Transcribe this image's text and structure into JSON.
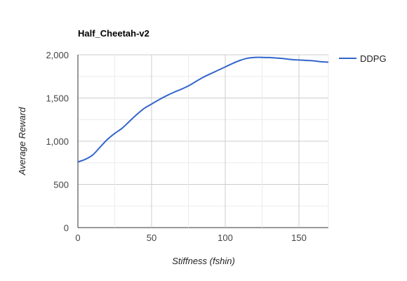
{
  "chart_data": {
    "type": "line",
    "title": "Half_Cheetah-v2",
    "xlabel": "Stiffness (fshin)",
    "ylabel": "Average Reward",
    "xlim": [
      0,
      170
    ],
    "ylim": [
      0,
      2000
    ],
    "x_ticks": [
      0,
      50,
      100,
      150
    ],
    "x_tick_labels": [
      "0",
      "50",
      "100",
      "150"
    ],
    "y_ticks": [
      0,
      500,
      1000,
      1500,
      2000
    ],
    "y_tick_labels": [
      "0",
      "500",
      "1,000",
      "1,500",
      "2,000"
    ],
    "grid": true,
    "legend_position": "right",
    "series": [
      {
        "name": "DDPG",
        "color": "#3366cc",
        "x": [
          0,
          5,
          10,
          15,
          20,
          25,
          30,
          35,
          40,
          45,
          50,
          55,
          60,
          65,
          70,
          75,
          80,
          85,
          90,
          95,
          100,
          105,
          110,
          115,
          120,
          125,
          130,
          135,
          140,
          145,
          150,
          155,
          160,
          165,
          170
        ],
        "y": [
          760,
          790,
          840,
          930,
          1020,
          1090,
          1150,
          1230,
          1310,
          1380,
          1430,
          1480,
          1525,
          1565,
          1600,
          1640,
          1690,
          1740,
          1780,
          1820,
          1860,
          1900,
          1935,
          1960,
          1970,
          1970,
          1968,
          1962,
          1955,
          1945,
          1940,
          1935,
          1930,
          1920,
          1915
        ]
      }
    ]
  }
}
